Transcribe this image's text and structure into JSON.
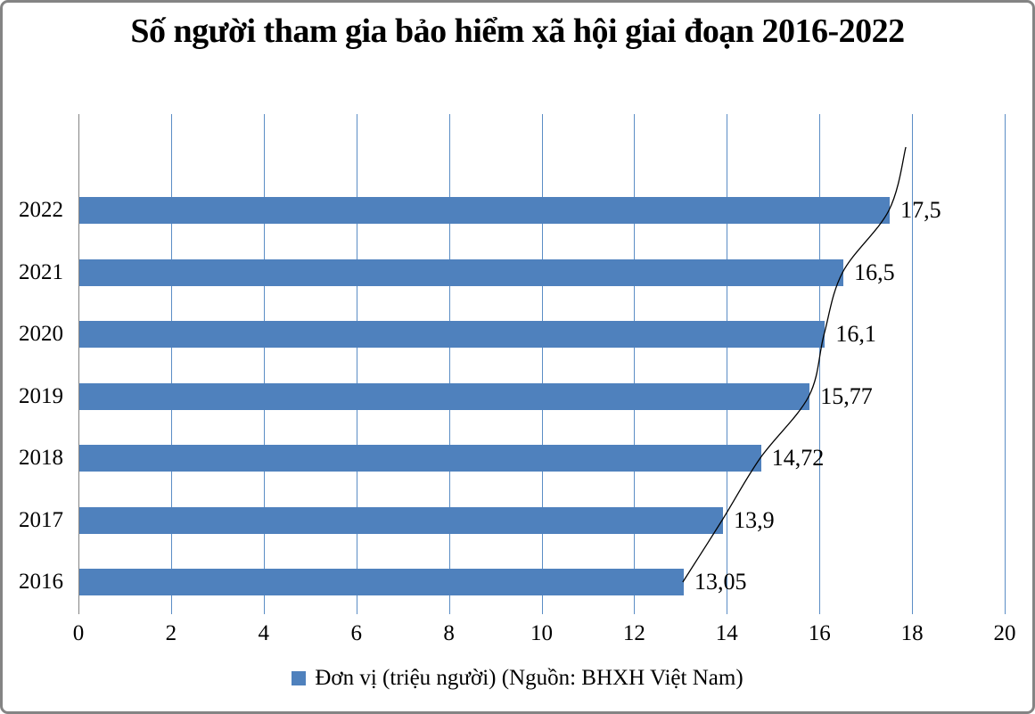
{
  "title": "Số người tham gia bảo hiểm xã hội giai đoạn 2016-2022",
  "legend": {
    "label": "Đơn vị (triệu người) (Nguồn: BHXH Việt Nam)",
    "swatch_color": "#4F81BD"
  },
  "colors": {
    "bar": "#4F81BD",
    "gridline": "#5B8DC5",
    "value_axis": "#848484",
    "frame_border": "#848484",
    "trendline": "#000000",
    "text": "#000000",
    "background": "#FFFFFF"
  },
  "chart_data": {
    "type": "bar",
    "orientation": "horizontal",
    "title": "Số người tham gia bảo hiểm xã hội giai đoạn 2016-2022",
    "categories": [
      "2022",
      "2021",
      "2020",
      "2019",
      "2018",
      "2017",
      "2016"
    ],
    "values": [
      17.5,
      16.5,
      16.1,
      15.77,
      14.72,
      13.9,
      13.05
    ],
    "value_labels": [
      "17,5",
      "16,5",
      "16,1",
      "15,77",
      "14,72",
      "13,9",
      "13,05"
    ],
    "legend": "Đơn vị (triệu người) (Nguồn: BHXH Việt Nam)",
    "xlabel": "",
    "ylabel": "",
    "xlim": [
      0,
      20
    ],
    "x_ticks": [
      0,
      2,
      4,
      6,
      8,
      10,
      12,
      14,
      16,
      18,
      20
    ],
    "x_tick_labels": [
      "0",
      "2",
      "4",
      "6",
      "8",
      "10",
      "12",
      "14",
      "16",
      "18",
      "20"
    ],
    "grid": true,
    "gridlines": "vertical, every 2 units, blue",
    "legend_position": "bottom center",
    "trendline": "thin black smooth curve through bar ends, extending above the 2022 bar",
    "bar_color": "#4F81BD"
  }
}
